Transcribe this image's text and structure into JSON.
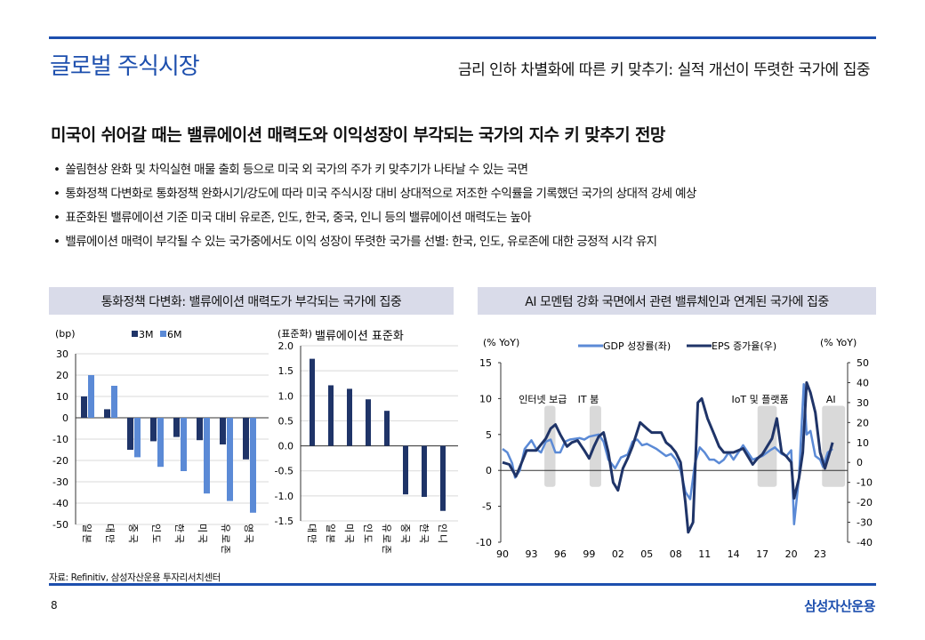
{
  "header": {
    "title": "글로벌 주식시장",
    "subtitle": "금리 인하 차별화에 따른 키 맞추기: 실적 개선이 뚜렷한 국가에 집중"
  },
  "headline": "미국이 쉬어갈 때는 밸류에이션 매력도와 이익성장이 부각되는 국가의 지수 키 맞추기 전망",
  "bullets": [
    "쏠림현상 완화 및 차익실현 매물 출회 등으로 미국 외 국가의 주가 키 맞추기가 나타날 수 있는 국면",
    "통화정책 다변화로 통화정책 완화시기/강도에 따라 미국 주식시장 대비 상대적으로 저조한 수익률을 기록했던 국가의 상대적 강세 예상",
    "표준화된 밸류에이션 기준 미국 대비 유로존, 인도, 한국, 중국, 인니 등의 밸류에이션 매력도는 높아",
    "밸류에이션 매력이 부각될 수 있는 국가중에서도 이익 성장이 뚜렷한 국가를 선별: 한국, 인도, 유로존에 대한 긍정적 시각 유지"
  ],
  "panels": {
    "left_title": "통화정책 다변화: 밸류에이션 매력도가 부각되는 국가에 집중",
    "right_title": "AI 모멘텀 강화 국면에서 관련 밸류체인과 연계된 국가에 집중"
  },
  "source": "자료: Refinitiv, 삼성자산운용 투자리서치센터",
  "page_number": "8",
  "logo": "삼성자산운용",
  "colors": {
    "accent": "#1d4fae",
    "dark_bar": "#1f3468",
    "light_bar": "#5b8ad6",
    "shade": "#d9d9d9"
  },
  "chart_data": [
    {
      "type": "bar",
      "title": "",
      "ylabel": "(bp)",
      "ylim": [
        -50,
        30
      ],
      "yticks": [
        30,
        20,
        10,
        0,
        -10,
        -20,
        -30,
        -40,
        -50
      ],
      "categories": [
        "일본",
        "대만",
        "중국",
        "인도",
        "한국",
        "미국",
        "유로존",
        "영국"
      ],
      "series": [
        {
          "name": "3M",
          "values": [
            10,
            4,
            -15,
            -11,
            -9,
            -10.5,
            -12.5,
            -19.5
          ]
        },
        {
          "name": "6M",
          "values": [
            20,
            15,
            -18.5,
            -23,
            -25,
            -35.5,
            -39,
            -44.5
          ]
        }
      ],
      "legend": "top"
    },
    {
      "type": "bar",
      "title": "밸류에이션 표준화",
      "ylabel": "(표준화)",
      "ylim": [
        -1.5,
        2.0
      ],
      "yticks": [
        "2.0",
        "1.5",
        "1.0",
        "0.5",
        "0.0",
        "-0.5",
        "-1.0",
        "-1.5"
      ],
      "categories": [
        "대만",
        "일본",
        "미국",
        "인도",
        "유로존",
        "중국",
        "한국",
        "인니"
      ],
      "series": [
        {
          "name": "밸류에이션 표준화",
          "values": [
            1.74,
            1.21,
            1.14,
            0.93,
            0.7,
            -0.97,
            -1.02,
            -1.3
          ]
        }
      ]
    },
    {
      "type": "line",
      "ylabel_left": "(% YoY)",
      "ylabel_right": "(% YoY)",
      "ylim_left": [
        -10,
        15
      ],
      "ylim_right": [
        -40,
        50
      ],
      "yticks_left": [
        15,
        10,
        5,
        0,
        -5,
        -10
      ],
      "yticks_right": [
        50,
        40,
        30,
        20,
        10,
        0,
        -10,
        -20,
        -30,
        -40
      ],
      "xticks": [
        "90",
        "93",
        "96",
        "99",
        "02",
        "05",
        "08",
        "11",
        "14",
        "17",
        "20",
        "23"
      ],
      "xlim": [
        1990,
        2025.8
      ],
      "annotations": [
        {
          "label": "인터넷 보급",
          "from": 1994.35,
          "to": 1995.5
        },
        {
          "label": "IT 붐",
          "from": 1999.05,
          "to": 2000.25
        },
        {
          "label": "IoT 및 플랫폼",
          "from": 2016.5,
          "to": 2018.5
        },
        {
          "label": "AI",
          "from": 2023.2,
          "to": 2025.6
        }
      ],
      "series": [
        {
          "name": "GDP 성장률(좌)",
          "axis": "left",
          "points": [
            [
              1990,
              3
            ],
            [
              1990.5,
              2.5
            ],
            [
              1991,
              1
            ],
            [
              1991.3,
              -1
            ],
            [
              1991.8,
              0
            ],
            [
              1992.3,
              3
            ],
            [
              1993,
              4.2
            ],
            [
              1993.5,
              3
            ],
            [
              1994,
              2.5
            ],
            [
              1994.5,
              4
            ],
            [
              1995,
              4.3
            ],
            [
              1995.5,
              2.5
            ],
            [
              1996,
              2.5
            ],
            [
              1996.5,
              4
            ],
            [
              1997,
              4.3
            ],
            [
              1998,
              4.5
            ],
            [
              1998.5,
              4.3
            ],
            [
              1999,
              4.7
            ],
            [
              2000,
              5
            ],
            [
              2000.5,
              4
            ],
            [
              2001,
              1.5
            ],
            [
              2001.7,
              0.3
            ],
            [
              2002.3,
              1.8
            ],
            [
              2003,
              2.2
            ],
            [
              2003.5,
              4
            ],
            [
              2004,
              4.3
            ],
            [
              2004.5,
              3.5
            ],
            [
              2005,
              3.7
            ],
            [
              2006,
              3
            ],
            [
              2007,
              2
            ],
            [
              2007.5,
              2.3
            ],
            [
              2008,
              1.5
            ],
            [
              2008.5,
              0
            ],
            [
              2009,
              -3
            ],
            [
              2009.5,
              -4
            ],
            [
              2010,
              1
            ],
            [
              2010.5,
              3.2
            ],
            [
              2011,
              2.5
            ],
            [
              2011.5,
              1.5
            ],
            [
              2012,
              1.5
            ],
            [
              2012.5,
              1
            ],
            [
              2013,
              1.5
            ],
            [
              2013.5,
              2.5
            ],
            [
              2014,
              1.5
            ],
            [
              2014.5,
              2.5
            ],
            [
              2015,
              3.5
            ],
            [
              2015.5,
              2.5
            ],
            [
              2016,
              1.5
            ],
            [
              2017,
              2
            ],
            [
              2017.8,
              2.8
            ],
            [
              2018.3,
              3.2
            ],
            [
              2019,
              2.3
            ],
            [
              2019.5,
              2
            ],
            [
              2020,
              2.8
            ],
            [
              2020.3,
              -7.5
            ],
            [
              2020.8,
              -1
            ],
            [
              2021.3,
              12
            ],
            [
              2021.6,
              5
            ],
            [
              2022,
              5.5
            ],
            [
              2022.5,
              2
            ],
            [
              2023,
              1.5
            ],
            [
              2023.3,
              0.5
            ],
            [
              2023.8,
              2.5
            ],
            [
              2024.3,
              3
            ]
          ]
        },
        {
          "name": "EPS 증가율(우)",
          "axis": "right",
          "points": [
            [
              1990,
              0
            ],
            [
              1990.7,
              -1
            ],
            [
              1991.4,
              -7
            ],
            [
              1992,
              0
            ],
            [
              1992.5,
              6
            ],
            [
              1993.5,
              6
            ],
            [
              1994.5,
              12
            ],
            [
              1995,
              17
            ],
            [
              1995.5,
              19
            ],
            [
              1996,
              14
            ],
            [
              1996.7,
              8
            ],
            [
              1997.2,
              10
            ],
            [
              1997.8,
              11
            ],
            [
              1998.5,
              6
            ],
            [
              1999,
              2
            ],
            [
              1999.5,
              8
            ],
            [
              2000,
              13
            ],
            [
              2000.5,
              15
            ],
            [
              2001,
              5
            ],
            [
              2001.5,
              -10
            ],
            [
              2002,
              -14
            ],
            [
              2002.5,
              -3
            ],
            [
              2003,
              2
            ],
            [
              2003.5,
              8
            ],
            [
              2004.3,
              20
            ],
            [
              2005,
              17
            ],
            [
              2005.5,
              15
            ],
            [
              2006.5,
              15
            ],
            [
              2007,
              10
            ],
            [
              2007.5,
              8
            ],
            [
              2008,
              5
            ],
            [
              2008.5,
              0
            ],
            [
              2009,
              -20
            ],
            [
              2009.3,
              -35
            ],
            [
              2009.8,
              -30
            ],
            [
              2010.3,
              30
            ],
            [
              2010.7,
              32
            ],
            [
              2011.3,
              22
            ],
            [
              2012,
              14
            ],
            [
              2012.5,
              8
            ],
            [
              2013,
              5
            ],
            [
              2014,
              5
            ],
            [
              2015,
              7
            ],
            [
              2015.5,
              3
            ],
            [
              2016,
              -1
            ],
            [
              2016.5,
              2
            ],
            [
              2017,
              4
            ],
            [
              2017.5,
              8
            ],
            [
              2018,
              12
            ],
            [
              2018.5,
              22
            ],
            [
              2019,
              5
            ],
            [
              2019.5,
              3
            ],
            [
              2020,
              0
            ],
            [
              2020.3,
              -18
            ],
            [
              2020.8,
              -8
            ],
            [
              2021.2,
              5
            ],
            [
              2021.6,
              40
            ],
            [
              2022,
              35
            ],
            [
              2022.5,
              25
            ],
            [
              2023,
              5
            ],
            [
              2023.5,
              -3
            ],
            [
              2024,
              5
            ],
            [
              2024.3,
              10
            ]
          ]
        }
      ],
      "legend": "top"
    }
  ]
}
